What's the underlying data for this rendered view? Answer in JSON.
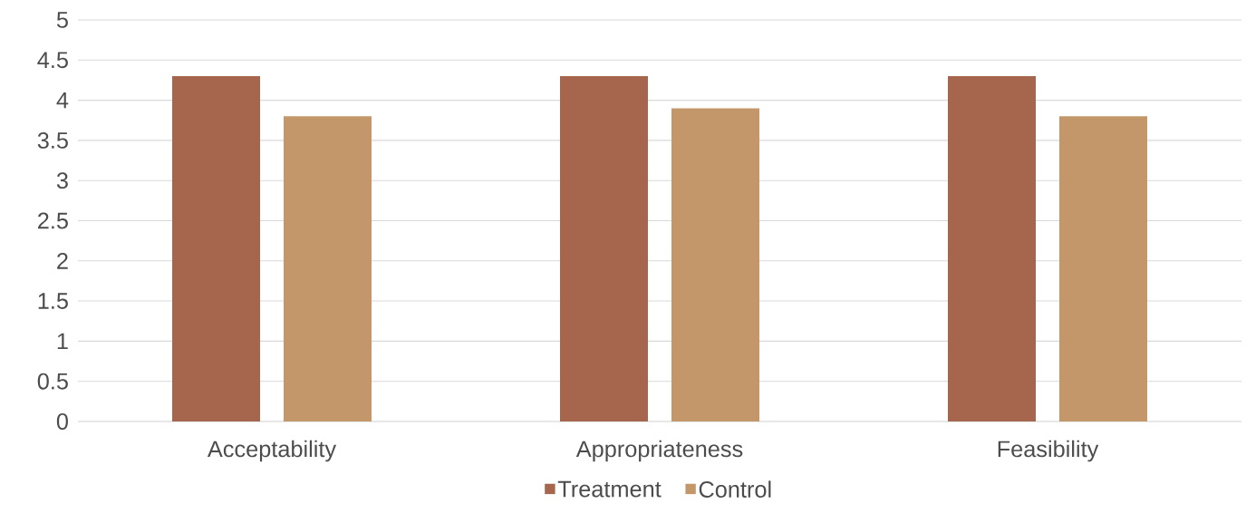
{
  "chart_data": {
    "type": "bar",
    "categories": [
      "Acceptability",
      "Appropriateness",
      "Feasibility"
    ],
    "series": [
      {
        "name": "Treatment",
        "color": "#a5664d",
        "values": [
          4.3,
          4.3,
          4.3
        ]
      },
      {
        "name": "Control",
        "color": "#c4976a",
        "values": [
          3.8,
          3.9,
          3.8
        ]
      }
    ],
    "ylim": [
      0,
      5
    ],
    "yticks": [
      0,
      0.5,
      1,
      1.5,
      2,
      2.5,
      3,
      3.5,
      4,
      4.5,
      5
    ],
    "grid": "y",
    "legend": "bottom"
  }
}
